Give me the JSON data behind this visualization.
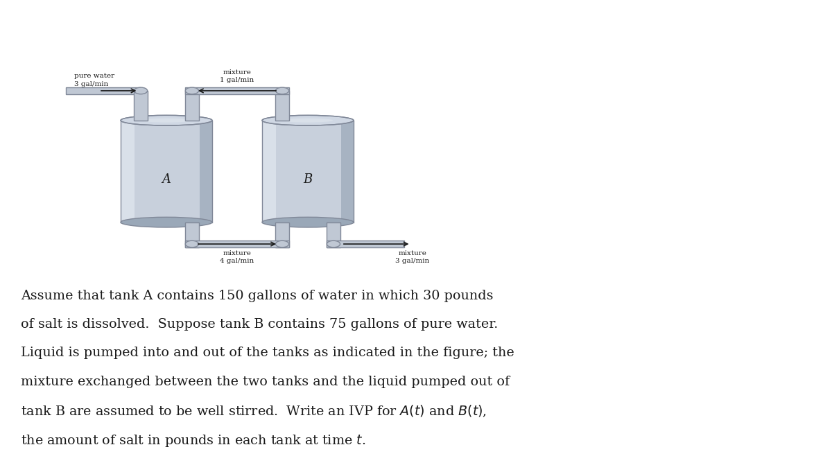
{
  "bg_color": "#ffffff",
  "tank_color_body": "#c8d0dc",
  "tank_color_highlight": "#dde4ec",
  "tank_color_shadow": "#9aa8b8",
  "tank_color_top": "#d0d8e4",
  "tank_edge_color": "#808898",
  "pipe_color": "#c0c8d4",
  "pipe_edge_color": "#808898",
  "arrow_color": "#1a1a1a",
  "text_color": "#1a1a1a",
  "label_pure_water": "pure water",
  "label_3galmin_left": "3 gal/min",
  "label_mixture_top": "mixture",
  "label_1galmin": "1 gal/min",
  "label_mixture_bot_left": "mixture",
  "label_4galmin": "4 gal/min",
  "label_mixture_bot_right": "mixture",
  "label_3galmin_right": "3 gal/min",
  "tank_A_label": "A",
  "tank_B_label": "B",
  "para_line1": "Assume that tank A contains 150 gallons of water in which 30 pounds",
  "para_line2": "of salt is dissolved.  Suppose tank B contains 75 gallons of pure water.",
  "para_line3": "Liquid is pumped into and out of the tanks as indicated in the figure; the",
  "para_line4": "mixture exchanged between the two tanks and the liquid pumped out of",
  "para_line5": "tank B are assumed to be well stirred.  Write an IVP for $A(t)$ and $B(t)$,",
  "para_line6": "the amount of salt in pounds in each tank at time $t$.",
  "figsize": [
    12.0,
    6.68
  ],
  "dpi": 100
}
